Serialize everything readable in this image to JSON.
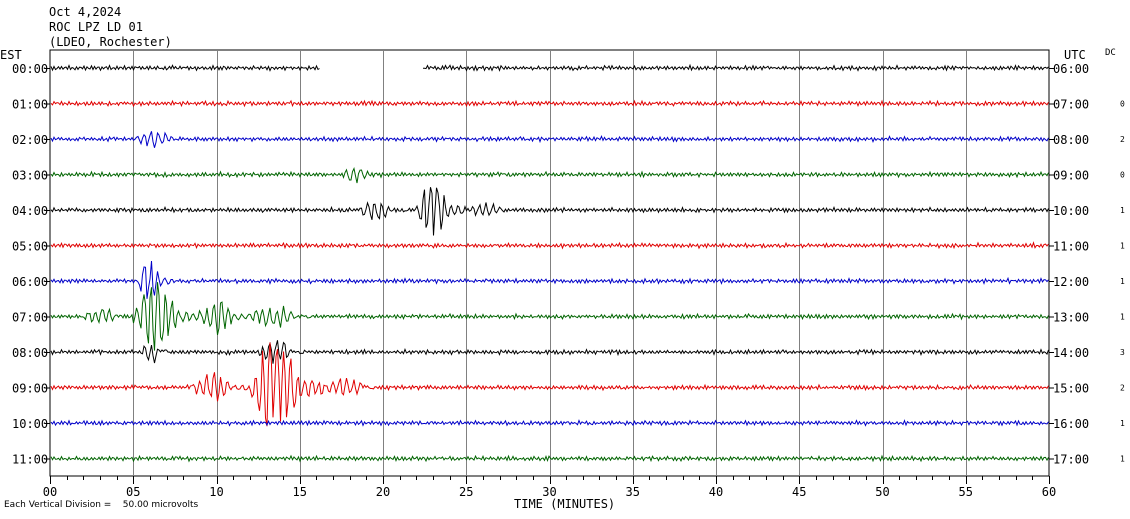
{
  "header": {
    "date": "Oct 4,2024",
    "station": "ROC LPZ LD 01",
    "network": "(LDEO, Rochester)"
  },
  "left_zone_label": "EST",
  "right_zone_label": "UTC",
  "dc_label": "DC",
  "x_axis_label": "TIME (MINUTES)",
  "footer": {
    "division_note": "Each Vertical Division =    50.00 microvolts"
  },
  "colors": {
    "black": "#000000",
    "red": "#e00000",
    "blue": "#0000c8",
    "green": "#006400",
    "grid": "#808080"
  },
  "chart_data": {
    "type": "line",
    "xlim": [
      0,
      60
    ],
    "x_ticks": [
      "00",
      "05",
      "10",
      "15",
      "20",
      "25",
      "30",
      "35",
      "40",
      "45",
      "50",
      "55",
      "60"
    ],
    "trace_color_cycle": [
      "black",
      "red",
      "blue",
      "green"
    ],
    "rows": [
      {
        "est": "00:00",
        "utc": "06:00",
        "dc": "",
        "gap": [
          16.2,
          22.4
        ]
      },
      {
        "est": "01:00",
        "utc": "07:00",
        "dc": "0"
      },
      {
        "est": "02:00",
        "utc": "08:00",
        "dc": "2",
        "events": [
          {
            "start": 5.0,
            "end": 8.5,
            "amp": 9
          }
        ]
      },
      {
        "est": "03:00",
        "utc": "09:00",
        "dc": "0",
        "events": [
          {
            "start": 17.5,
            "end": 20.0,
            "amp": 9
          }
        ]
      },
      {
        "est": "04:00",
        "utc": "10:00",
        "dc": "1",
        "events": [
          {
            "start": 18.5,
            "end": 21.5,
            "amp": 12
          },
          {
            "start": 22.0,
            "end": 25.0,
            "amp": 34
          },
          {
            "start": 25.0,
            "end": 28.5,
            "amp": 8
          }
        ]
      },
      {
        "est": "05:00",
        "utc": "11:00",
        "dc": "1"
      },
      {
        "est": "06:00",
        "utc": "12:00",
        "dc": "1",
        "events": [
          {
            "start": 5.3,
            "end": 7.3,
            "amp": 24
          }
        ]
      },
      {
        "est": "07:00",
        "utc": "13:00",
        "dc": "1",
        "events": [
          {
            "start": 2.0,
            "end": 5.0,
            "amp": 10
          },
          {
            "start": 5.0,
            "end": 9.0,
            "amp": 40
          },
          {
            "start": 9.0,
            "end": 12.0,
            "amp": 22
          },
          {
            "start": 12.0,
            "end": 16.0,
            "amp": 14
          }
        ]
      },
      {
        "est": "08:00",
        "utc": "14:00",
        "dc": "3",
        "events": [
          {
            "start": 5.5,
            "end": 7.0,
            "amp": 18
          },
          {
            "start": 12.5,
            "end": 15.5,
            "amp": 14
          }
        ]
      },
      {
        "est": "09:00",
        "utc": "15:00",
        "dc": "2",
        "events": [
          {
            "start": 8.5,
            "end": 12.0,
            "amp": 16
          },
          {
            "start": 12.0,
            "end": 16.5,
            "amp": 58
          },
          {
            "start": 16.5,
            "end": 20.0,
            "amp": 12
          }
        ]
      },
      {
        "est": "10:00",
        "utc": "16:00",
        "dc": "1"
      },
      {
        "est": "11:00",
        "utc": "17:00",
        "dc": "1"
      }
    ]
  }
}
